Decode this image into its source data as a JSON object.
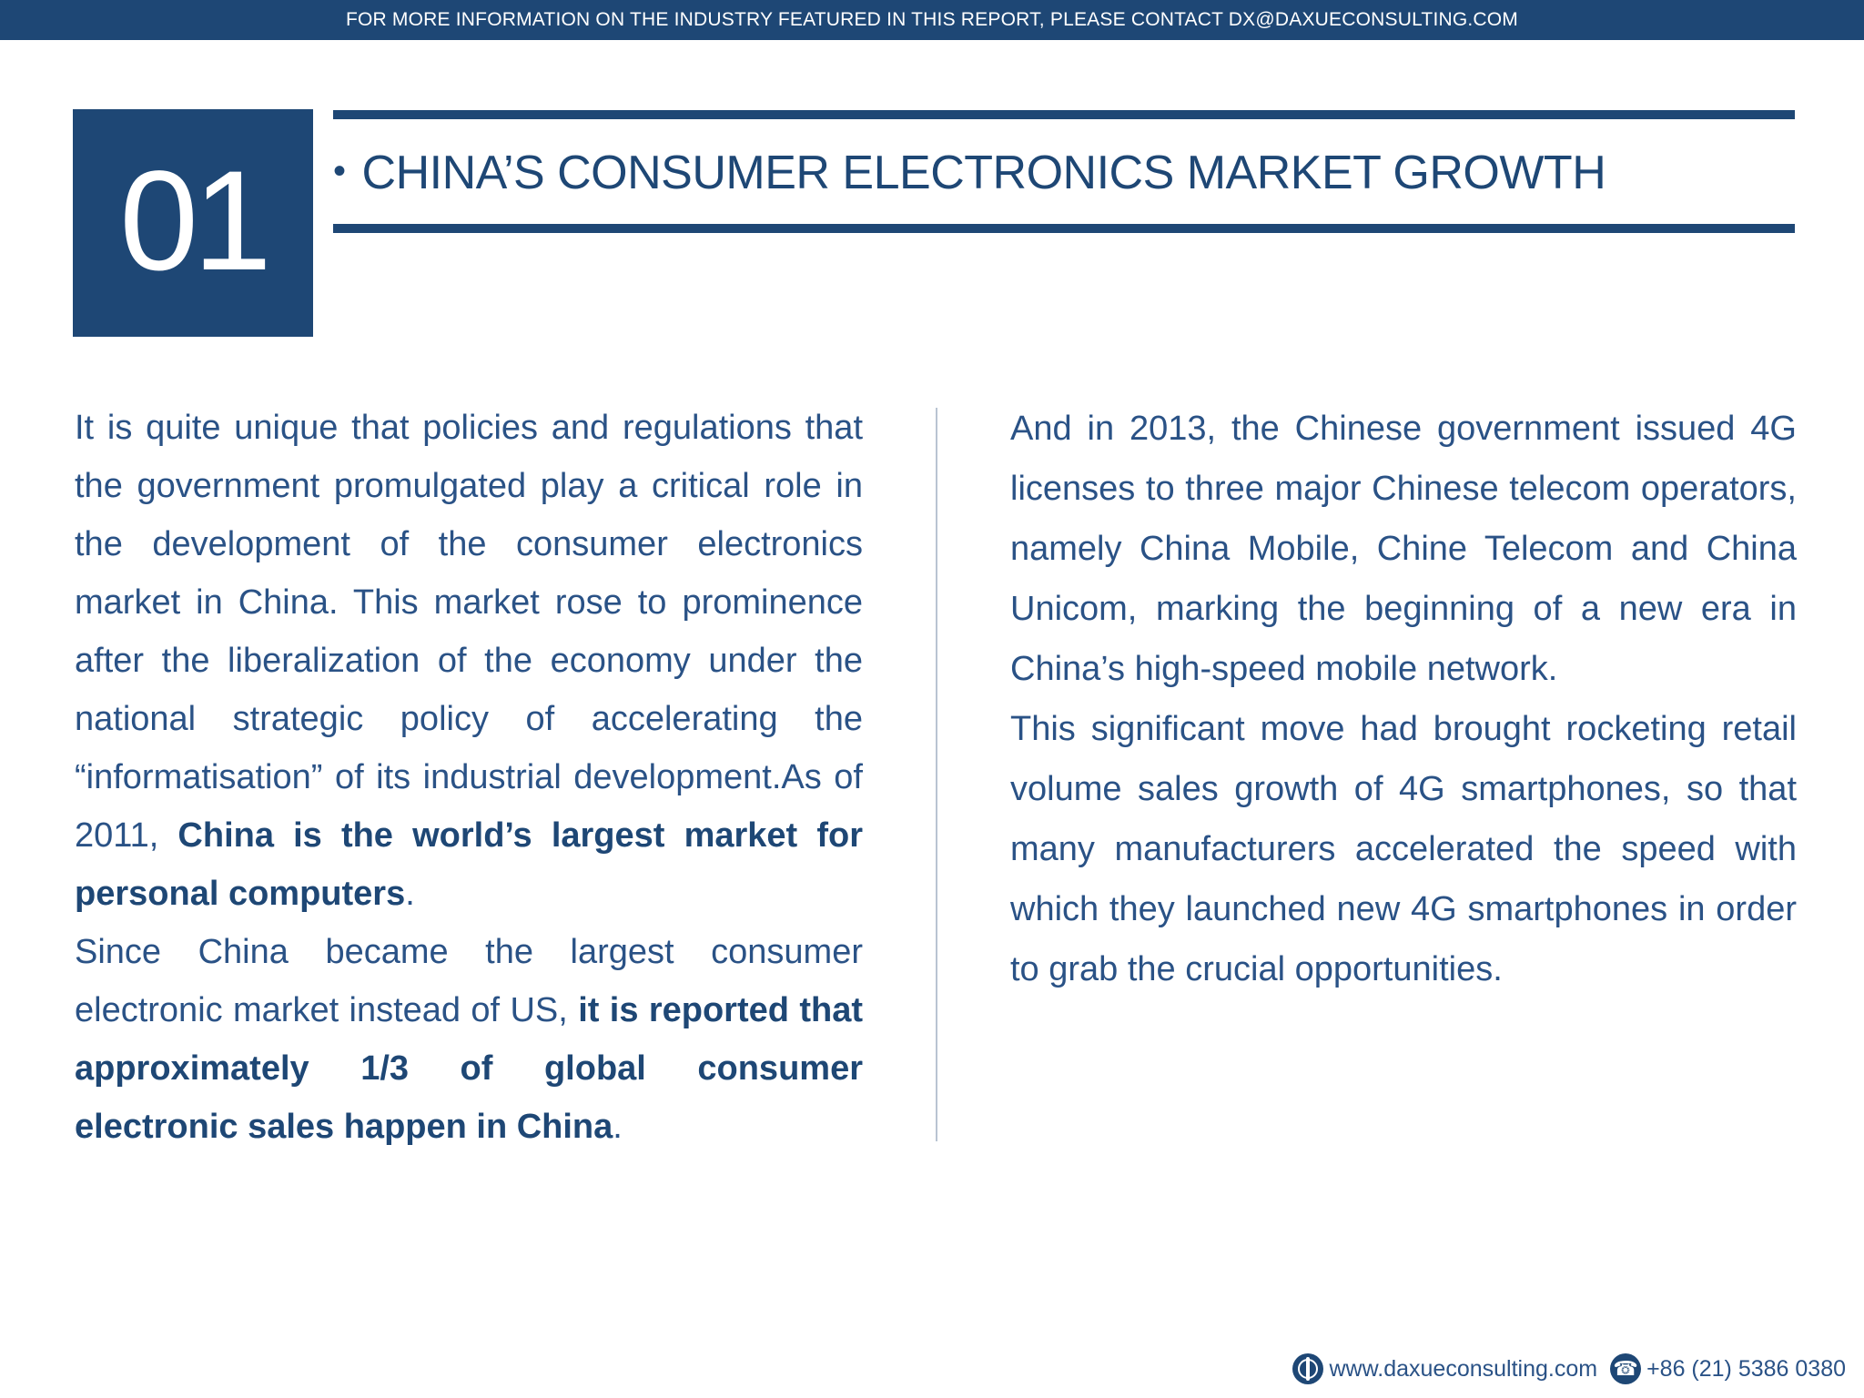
{
  "banner": {
    "text": "FOR MORE INFORMATION ON THE INDUSTRY FEATURED IN THIS REPORT, PLEASE CONTACT DX@DAXUECONSULTING.COM"
  },
  "section": {
    "number": "01",
    "bullet": "•",
    "title": "CHINA’S CONSUMER ELECTRONICS MARKET GROWTH"
  },
  "left_column": {
    "p1_text": "It is quite unique that policies and regulations that the government promulgated play a critical role in the development of the consumer electronics market in China. This market rose to prominence after the liberalization of the economy under the national strategic policy of accelerating the “informatisation” of its industrial development.As of 2011, ",
    "p1_bold": "China is the world’s largest market for personal computers",
    "p1_end": ".",
    "p2_text": "Since China became the largest consumer electronic market instead of US, ",
    "p2_bold": "it is reported that approximately 1/3 of global consumer electronic sales happen in China",
    "p2_end": "."
  },
  "right_column": {
    "p1": "And in 2013, the Chinese government issued 4G licenses to three major Chinese telecom operators, namely China Mobile, Chine Telecom and China Unicom, marking the beginning of a new era in China’s high-speed mobile network.",
    "p2": "This significant move had brought rocketing retail volume sales growth of 4G smartphones, so that many manufacturers accelerated the speed with which they launched new 4G smartphones in order to grab the crucial opportunities."
  },
  "footer": {
    "website": "www.daxueconsulting.com",
    "phone": "+86 (21) 5386 0380",
    "icons": [
      "globe-icon",
      "phone-icon"
    ]
  },
  "colors": {
    "brand_blue": "#1e4775",
    "text_blue": "#2a5286"
  }
}
